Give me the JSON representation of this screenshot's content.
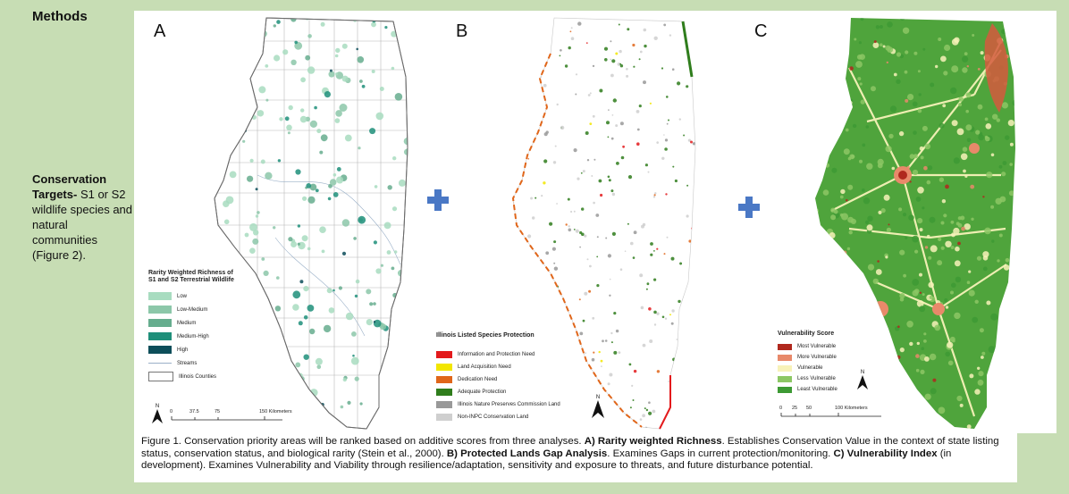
{
  "heading": "Methods",
  "side": {
    "targets_bold": "Conservation Targets-",
    "targets_rest": " S1 or S2 wildlife species and natural communities (Figure 2)."
  },
  "maps": {
    "a": {
      "letter": "A",
      "legend_title": "Rarity Weighted Richness of S1 and S2 Terrestrial Wildlife",
      "items": [
        {
          "label": "Low",
          "color": "#a8dcc0"
        },
        {
          "label": "Low-Medium",
          "color": "#8cc7a9"
        },
        {
          "label": "Medium",
          "color": "#66ad8e"
        },
        {
          "label": "Medium-High",
          "color": "#1f8f7a"
        },
        {
          "label": "High",
          "color": "#0d4e5a"
        }
      ],
      "streams_label": "Streams",
      "counties_label": "Illinois Counties",
      "scale_ticks": [
        "0",
        "37.5",
        "75",
        "150 Kilometers"
      ],
      "north": "N"
    },
    "b": {
      "letter": "B",
      "legend_title": "Illinois Listed Species Protection",
      "items": [
        {
          "label": "Information and Protection Need",
          "color": "#e31a1c"
        },
        {
          "label": "Land Acquisition Need",
          "color": "#f2e600"
        },
        {
          "label": "Dedication Need",
          "color": "#e0661a"
        },
        {
          "label": "Adequate Protection",
          "color": "#2f7d1c"
        },
        {
          "label": "Illinois Nature Preserves Commission Land",
          "color": "#999999"
        },
        {
          "label": "Non-INPC Conservation Land",
          "color": "#cfcfcf"
        }
      ],
      "north": "N"
    },
    "c": {
      "letter": "C",
      "legend_title": "Vulnerability Score",
      "items": [
        {
          "label": "Most Vulnerable",
          "color": "#b0281d"
        },
        {
          "label": "More Vulnerable",
          "color": "#e8896a"
        },
        {
          "label": "Vulnerable",
          "color": "#f7f2b8"
        },
        {
          "label": "Less Vulnerable",
          "color": "#8cc764"
        },
        {
          "label": "Least Vulnerable",
          "color": "#3d9a34"
        }
      ],
      "scale_ticks": [
        "0",
        "25",
        "50",
        "100 Kilometers"
      ],
      "north": "N"
    }
  },
  "caption": {
    "p1": "Figure 1. Conservation priority areas will be ranked based on additive scores from three analyses. ",
    "a_bold": "A) Rarity weighted Richness",
    "p2": ". Establishes Conservation Value in the context of state listing status, conservation status, and biological rarity (Stein et al., 2000). ",
    "b_bold": "B) Protected Lands Gap Analysis",
    "p3": ". Examines Gaps in current protection/monitoring. ",
    "c_bold": "C) Vulnerability Index",
    "p4": " (in development). Examines Vulnerability and Viability through resilience/adaptation, sensitivity and exposure to threats, and future disturbance potential."
  },
  "colors": {
    "background": "#c7ddb4",
    "arrow": "#4a78c5",
    "plus": "#4a78c5"
  }
}
